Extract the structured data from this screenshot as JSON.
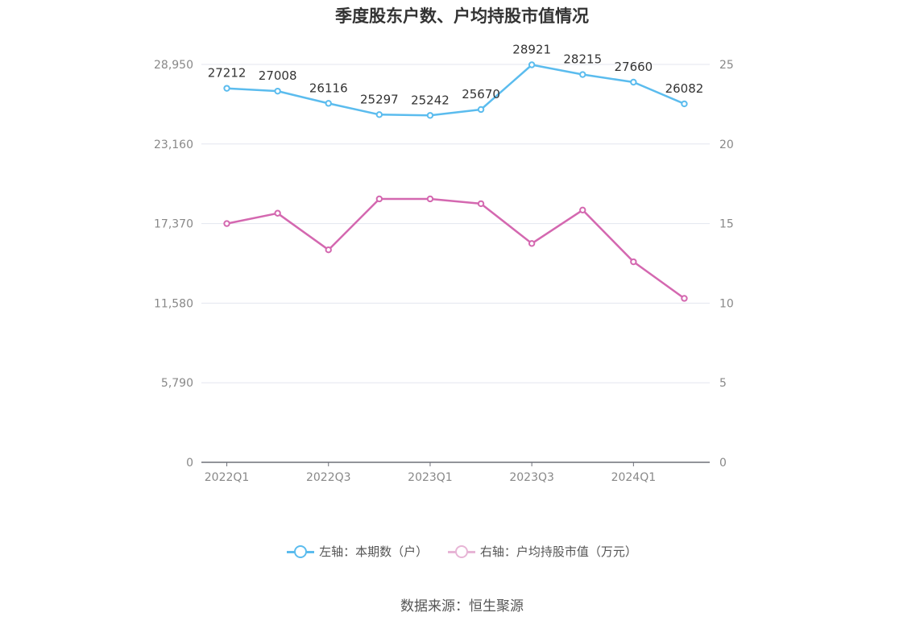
{
  "title": "季度股东户数、户均持股市值情况",
  "colors": {
    "series1": "#5bbcee",
    "series2": "#d468b0",
    "grid": "#e3e6ef",
    "axis": "#6e7079"
  },
  "chart_data": {
    "type": "line",
    "title": "季度股东户数、户均持股市值情况",
    "categories": [
      "2022Q1",
      "2022Q2",
      "2022Q3",
      "2022Q4",
      "2023Q1",
      "2023Q2",
      "2023Q3",
      "2023Q4",
      "2024Q1",
      "2024Q2"
    ],
    "x_tick_labels": [
      "2022Q1",
      "2022Q3",
      "2023Q1",
      "2023Q3",
      "2024Q1"
    ],
    "y_left": {
      "ticks": [
        "0",
        "5,790",
        "11,580",
        "17,370",
        "23,160",
        "28,950"
      ],
      "ylim": [
        0,
        28950
      ]
    },
    "y_right": {
      "ticks": [
        "0",
        "5",
        "10",
        "15",
        "20",
        "25"
      ],
      "ylim": [
        0,
        25
      ]
    },
    "grid": true,
    "legend_position": "bottom",
    "series": [
      {
        "name": "左轴：本期数（户）",
        "axis": "left",
        "color": "#5bbcee",
        "values": [
          27212,
          27008,
          26116,
          25297,
          25242,
          25670,
          28921,
          28215,
          27660,
          26082
        ],
        "labels": [
          "27212",
          "27008",
          "26116",
          "25297",
          "25242",
          "25670",
          "28921",
          "28215",
          "27660",
          "26082"
        ]
      },
      {
        "name": "右轴：户均持股市值（万元）",
        "axis": "right",
        "color": "#d468b0",
        "values": [
          15.0,
          15.65,
          13.35,
          16.55,
          16.55,
          16.25,
          13.75,
          15.85,
          12.6,
          10.3
        ]
      }
    ]
  },
  "legend": {
    "item1": "左轴：本期数（户）",
    "item2": "右轴：户均持股市值（万元）"
  },
  "source": "数据来源：恒生聚源"
}
